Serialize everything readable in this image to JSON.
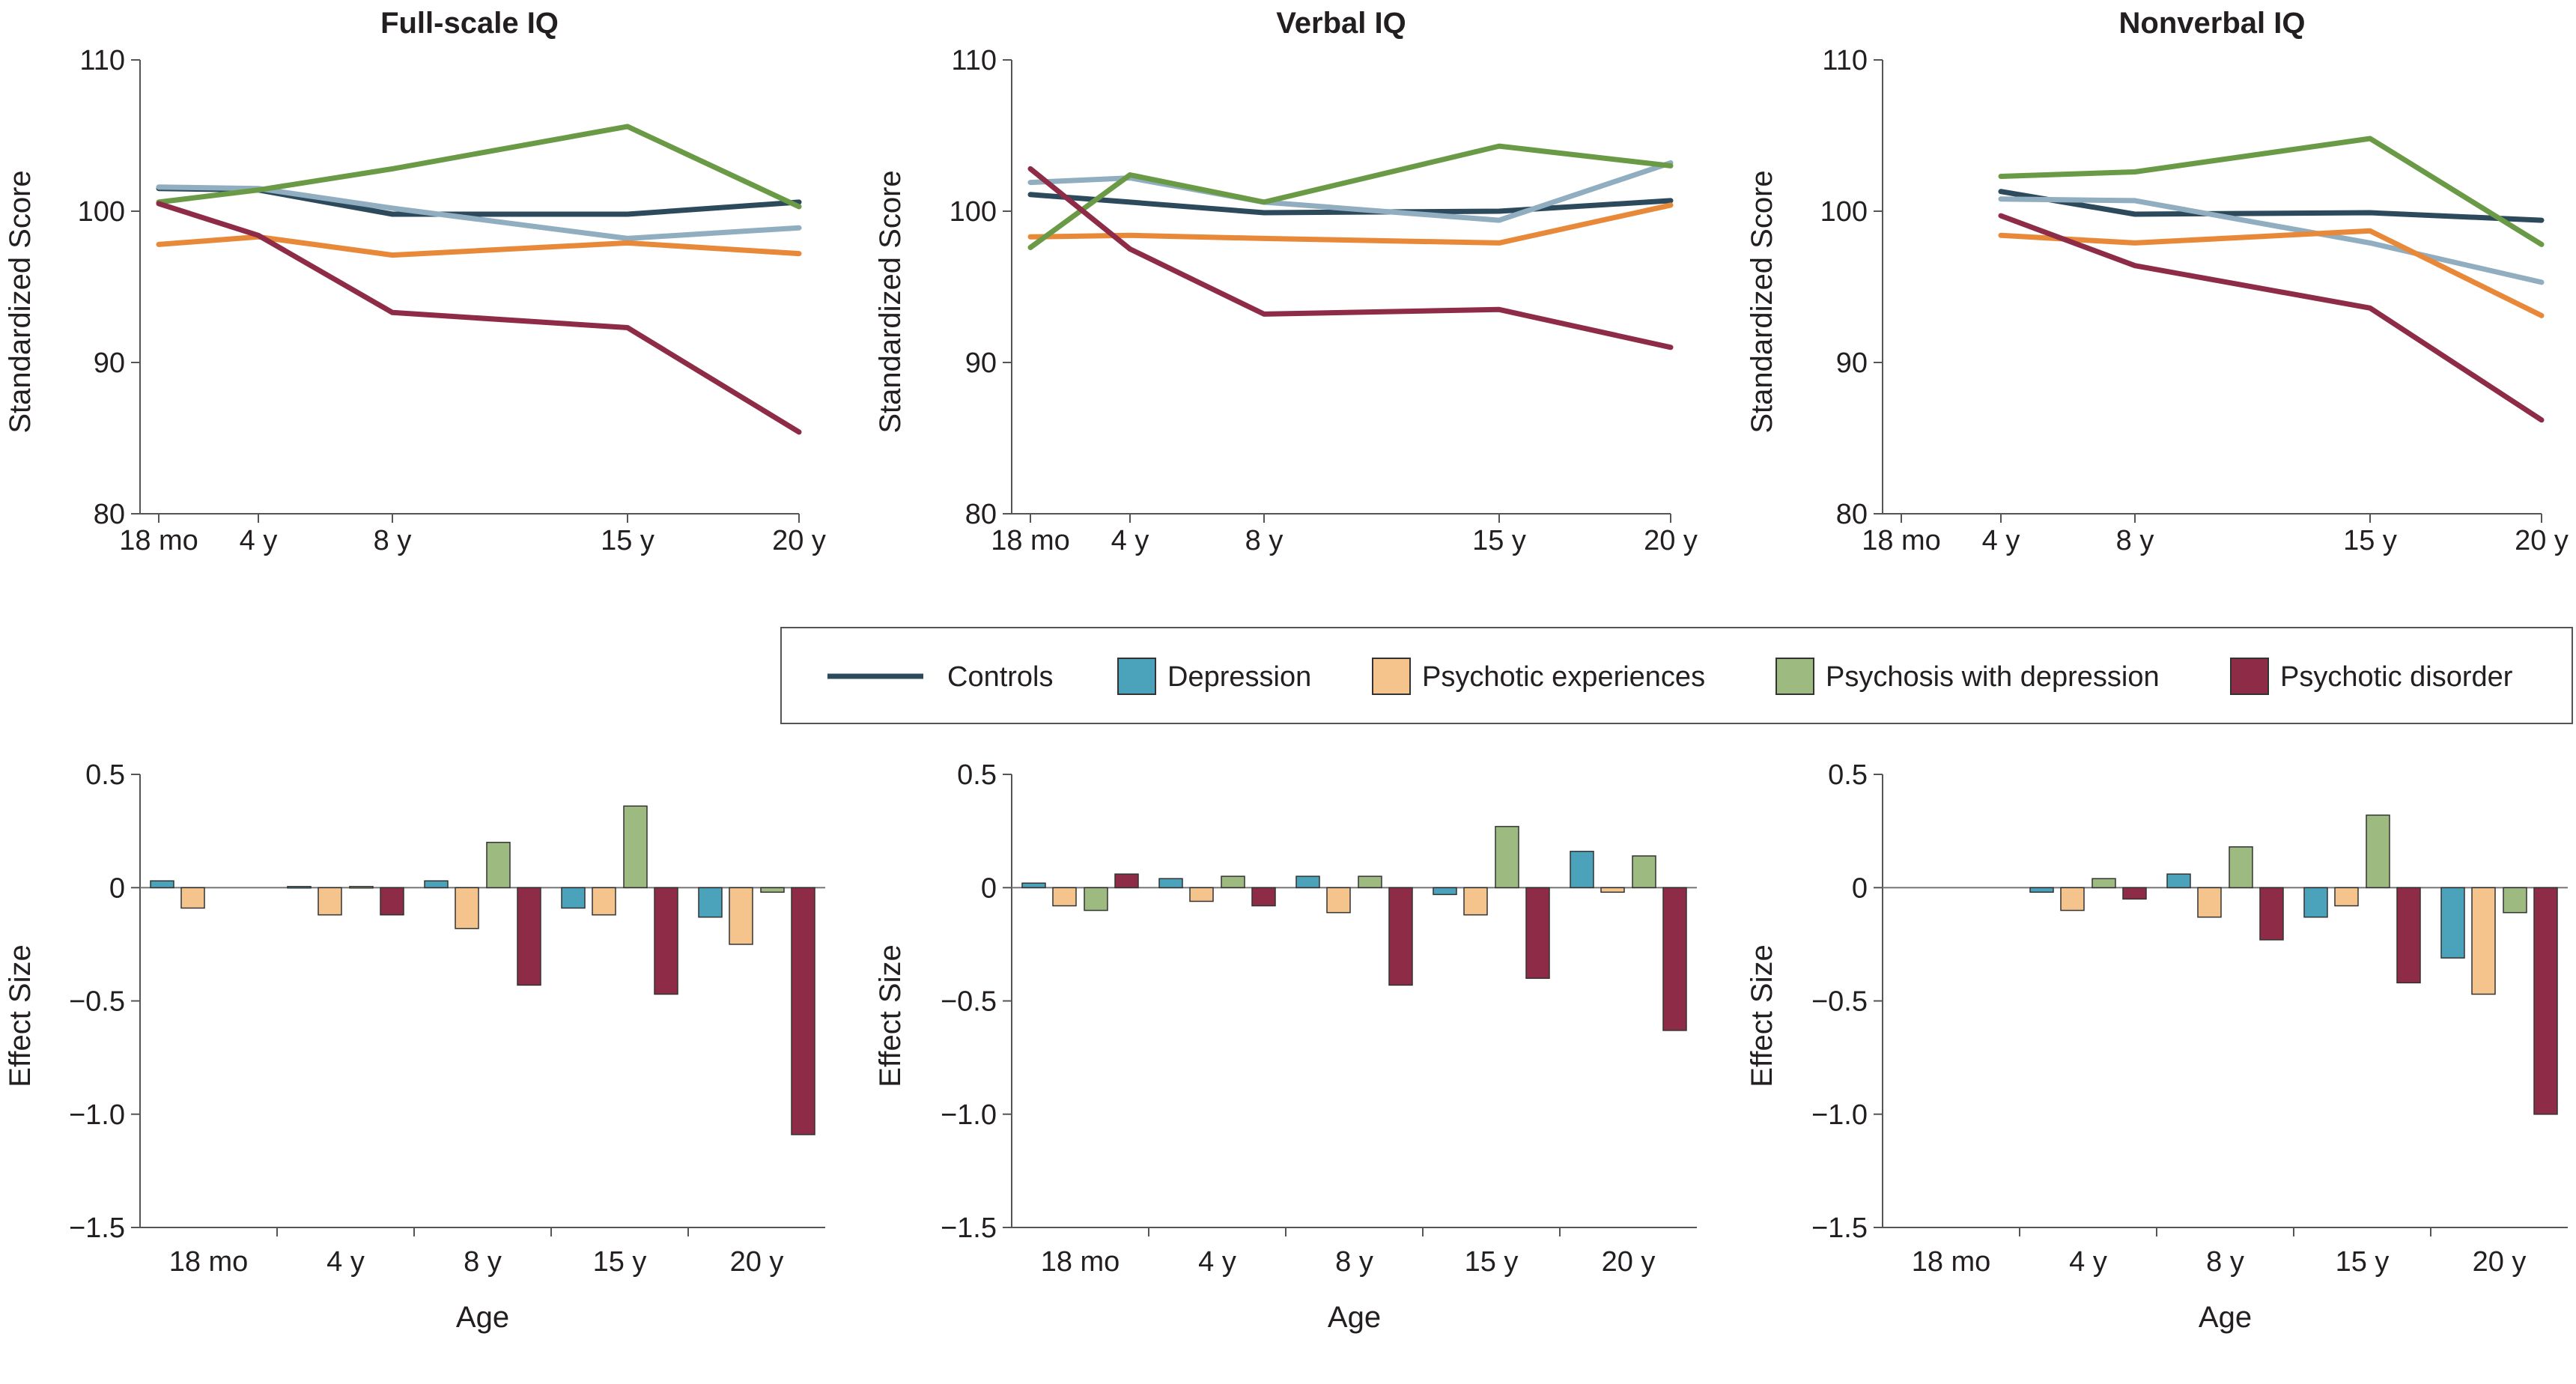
{
  "chart_data": [
    {
      "type": "line",
      "title": "Full-scale IQ",
      "ylabel": "Standardized Score",
      "xlabel": "",
      "x_tick_labels": [
        "18 mo",
        "4 y",
        "8 y",
        "15 y",
        "20 y"
      ],
      "x_ages_years": [
        1.5,
        4,
        8,
        15,
        20
      ],
      "y_ticks": [
        "80",
        "90",
        "100",
        "110"
      ],
      "ylim": [
        80,
        110
      ],
      "grid": false,
      "series": [
        {
          "name": "Controls",
          "x": [
            1.5,
            4,
            8,
            15,
            20
          ],
          "values": [
            101.5,
            101.4,
            99.8,
            99.8,
            100.6
          ]
        },
        {
          "name": "Depression",
          "x": [
            1.5,
            4,
            8,
            15,
            20
          ],
          "values": [
            101.6,
            101.5,
            100.2,
            98.2,
            98.9
          ]
        },
        {
          "name": "Psychotic experiences",
          "x": [
            1.5,
            4,
            8,
            15,
            20
          ],
          "values": [
            97.8,
            98.3,
            97.1,
            97.9,
            97.2
          ]
        },
        {
          "name": "Psychosis with depression",
          "x": [
            1.5,
            4,
            8,
            15,
            20
          ],
          "values": [
            100.6,
            101.4,
            102.8,
            105.6,
            100.3
          ]
        },
        {
          "name": "Psychotic disorder",
          "x": [
            1.5,
            4,
            8,
            15,
            20
          ],
          "values": [
            100.5,
            98.4,
            93.3,
            92.3,
            85.4
          ]
        }
      ]
    },
    {
      "type": "line",
      "title": "Verbal IQ",
      "ylabel": "Standardized Score",
      "xlabel": "",
      "x_tick_labels": [
        "18 mo",
        "4 y",
        "8 y",
        "15 y",
        "20 y"
      ],
      "x_ages_years": [
        1.5,
        4,
        8,
        15,
        20
      ],
      "y_ticks": [
        "80",
        "90",
        "100",
        "110"
      ],
      "ylim": [
        80,
        110
      ],
      "grid": false,
      "series": [
        {
          "name": "Controls",
          "x": [
            1.5,
            4,
            8,
            15,
            20
          ],
          "values": [
            101.1,
            100.6,
            99.9,
            100.0,
            100.7
          ]
        },
        {
          "name": "Depression",
          "x": [
            1.5,
            4,
            8,
            15,
            20
          ],
          "values": [
            101.9,
            102.2,
            100.6,
            99.4,
            103.2
          ]
        },
        {
          "name": "Psychotic experiences",
          "x": [
            1.5,
            4,
            8,
            15,
            20
          ],
          "values": [
            98.3,
            98.4,
            98.2,
            97.9,
            100.4
          ]
        },
        {
          "name": "Psychosis with depression",
          "x": [
            1.5,
            4,
            8,
            15,
            20
          ],
          "values": [
            97.6,
            102.4,
            100.6,
            104.3,
            103.0
          ]
        },
        {
          "name": "Psychotic disorder",
          "x": [
            1.5,
            4,
            8,
            15,
            20
          ],
          "values": [
            102.8,
            97.5,
            93.2,
            93.5,
            91.0
          ]
        }
      ]
    },
    {
      "type": "line",
      "title": "Nonverbal IQ",
      "ylabel": "Standardized Score",
      "xlabel": "",
      "x_tick_labels": [
        "18 mo",
        "4 y",
        "8 y",
        "15 y",
        "20 y"
      ],
      "x_ages_years": [
        1.5,
        4,
        8,
        15,
        20
      ],
      "y_ticks": [
        "80",
        "90",
        "100",
        "110"
      ],
      "ylim": [
        80,
        110
      ],
      "grid": false,
      "series": [
        {
          "name": "Controls",
          "x": [
            4,
            8,
            15,
            20
          ],
          "values": [
            101.3,
            99.8,
            99.9,
            99.4
          ]
        },
        {
          "name": "Depression",
          "x": [
            4,
            8,
            15,
            20
          ],
          "values": [
            100.8,
            100.7,
            97.9,
            95.3
          ]
        },
        {
          "name": "Psychotic experiences",
          "x": [
            4,
            8,
            15,
            20
          ],
          "values": [
            98.4,
            97.9,
            98.7,
            93.1
          ]
        },
        {
          "name": "Psychosis with depression",
          "x": [
            4,
            8,
            15,
            20
          ],
          "values": [
            102.3,
            102.6,
            104.8,
            97.8
          ]
        },
        {
          "name": "Psychotic disorder",
          "x": [
            4,
            8,
            15,
            20
          ],
          "values": [
            99.7,
            96.4,
            93.6,
            86.2
          ]
        }
      ]
    },
    {
      "type": "bar",
      "xlabel": "Age",
      "ylabel": "Effect Size",
      "categories": [
        "18 mo",
        "4 y",
        "8 y",
        "15 y",
        "20 y"
      ],
      "y_ticks": [
        "0.5",
        "0",
        "−0.5",
        "−1.0",
        "−1.5"
      ],
      "ylim": [
        -1.5,
        0.5
      ],
      "grid": false,
      "series": [
        {
          "name": "Depression",
          "values": [
            0.03,
            0.005,
            0.03,
            -0.09,
            -0.13
          ]
        },
        {
          "name": "Psychotic experiences",
          "values": [
            -0.09,
            -0.12,
            -0.18,
            -0.12,
            -0.25
          ]
        },
        {
          "name": "Psychosis with depression",
          "values": [
            null,
            0.005,
            0.2,
            0.36,
            -0.02
          ]
        },
        {
          "name": "Psychotic disorder",
          "values": [
            null,
            -0.12,
            -0.43,
            -0.47,
            -1.09
          ]
        }
      ]
    },
    {
      "type": "bar",
      "xlabel": "Age",
      "ylabel": "Effect Size",
      "categories": [
        "18 mo",
        "4 y",
        "8 y",
        "15 y",
        "20 y"
      ],
      "y_ticks": [
        "0.5",
        "0",
        "−0.5",
        "−1.0",
        "−1.5"
      ],
      "ylim": [
        -1.5,
        0.5
      ],
      "grid": false,
      "series": [
        {
          "name": "Depression",
          "values": [
            0.02,
            0.04,
            0.05,
            -0.03,
            0.16
          ]
        },
        {
          "name": "Psychotic experiences",
          "values": [
            -0.08,
            -0.06,
            -0.11,
            -0.12,
            -0.02
          ]
        },
        {
          "name": "Psychosis with depression",
          "values": [
            -0.1,
            0.05,
            0.05,
            0.27,
            0.14
          ]
        },
        {
          "name": "Psychotic disorder",
          "values": [
            0.06,
            -0.08,
            -0.43,
            -0.4,
            -0.63
          ]
        }
      ]
    },
    {
      "type": "bar",
      "xlabel": "Age",
      "ylabel": "Effect Size",
      "categories": [
        "18 mo",
        "4 y",
        "8 y",
        "15 y",
        "20 y"
      ],
      "y_ticks": [
        "0.5",
        "0",
        "−0.5",
        "−1.0",
        "−1.5"
      ],
      "ylim": [
        -1.5,
        0.5
      ],
      "grid": false,
      "series": [
        {
          "name": "Depression",
          "values": [
            null,
            -0.02,
            0.06,
            -0.13,
            -0.31
          ]
        },
        {
          "name": "Psychotic experiences",
          "values": [
            null,
            -0.1,
            -0.13,
            -0.08,
            -0.47
          ]
        },
        {
          "name": "Psychosis with depression",
          "values": [
            null,
            0.04,
            0.18,
            0.32,
            -0.11
          ]
        },
        {
          "name": "Psychotic disorder",
          "values": [
            null,
            -0.05,
            -0.23,
            -0.42,
            -1.0
          ]
        }
      ]
    }
  ],
  "legend": {
    "placement": "center",
    "items": [
      {
        "label": "Controls",
        "marker": "line",
        "color": "#2d4a5c"
      },
      {
        "label": "Depression",
        "marker": "box",
        "color": "#4aa3bb"
      },
      {
        "label": "Psychotic experiences",
        "marker": "box",
        "color": "#f4c48c"
      },
      {
        "label": "Psychosis with depression",
        "marker": "box",
        "color": "#9dba80"
      },
      {
        "label": "Psychotic disorder",
        "marker": "box",
        "color": "#8e2c47"
      }
    ]
  },
  "line_colors": {
    "Controls": "#2d4a5c",
    "Depression": "#91adc0",
    "Psychotic experiences": "#e8893a",
    "Psychosis with depression": "#6a9a45",
    "Psychotic disorder": "#8e2c47"
  },
  "bar_colors": {
    "Depression": "#4aa3bb",
    "Psychotic experiences": "#f4c48c",
    "Psychosis with depression": "#9dba80",
    "Psychotic disorder": "#8e2c47"
  }
}
